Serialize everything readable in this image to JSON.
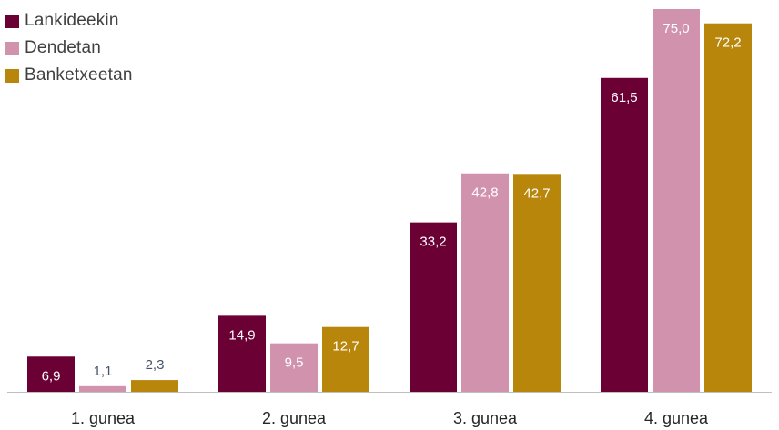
{
  "chart_data": {
    "type": "bar",
    "categories": [
      "1. gunea",
      "2. gunea",
      "3. gunea",
      "4. gunea"
    ],
    "series": [
      {
        "name": "Lankideekin",
        "color": "#6b0034",
        "values": [
          6.9,
          14.9,
          33.2,
          61.5
        ],
        "labels": [
          "6,9",
          "14,9",
          "33,2",
          "61,5"
        ]
      },
      {
        "name": "Dendetan",
        "color": "#d192ae",
        "values": [
          1.1,
          9.5,
          42.8,
          75.0
        ],
        "labels": [
          "1,1",
          "9,5",
          "42,8",
          "75,0"
        ]
      },
      {
        "name": "Banketxeetan",
        "color": "#b8860b",
        "values": [
          2.3,
          12.7,
          42.7,
          72.2
        ],
        "labels": [
          "2,3",
          "12,7",
          "42,7",
          "72,2"
        ]
      }
    ],
    "ylim": [
      0,
      75
    ],
    "grid": false,
    "legend_position": "top-left",
    "label_colors": {
      "inside": "#ffffff",
      "outside": "#44546a"
    }
  }
}
